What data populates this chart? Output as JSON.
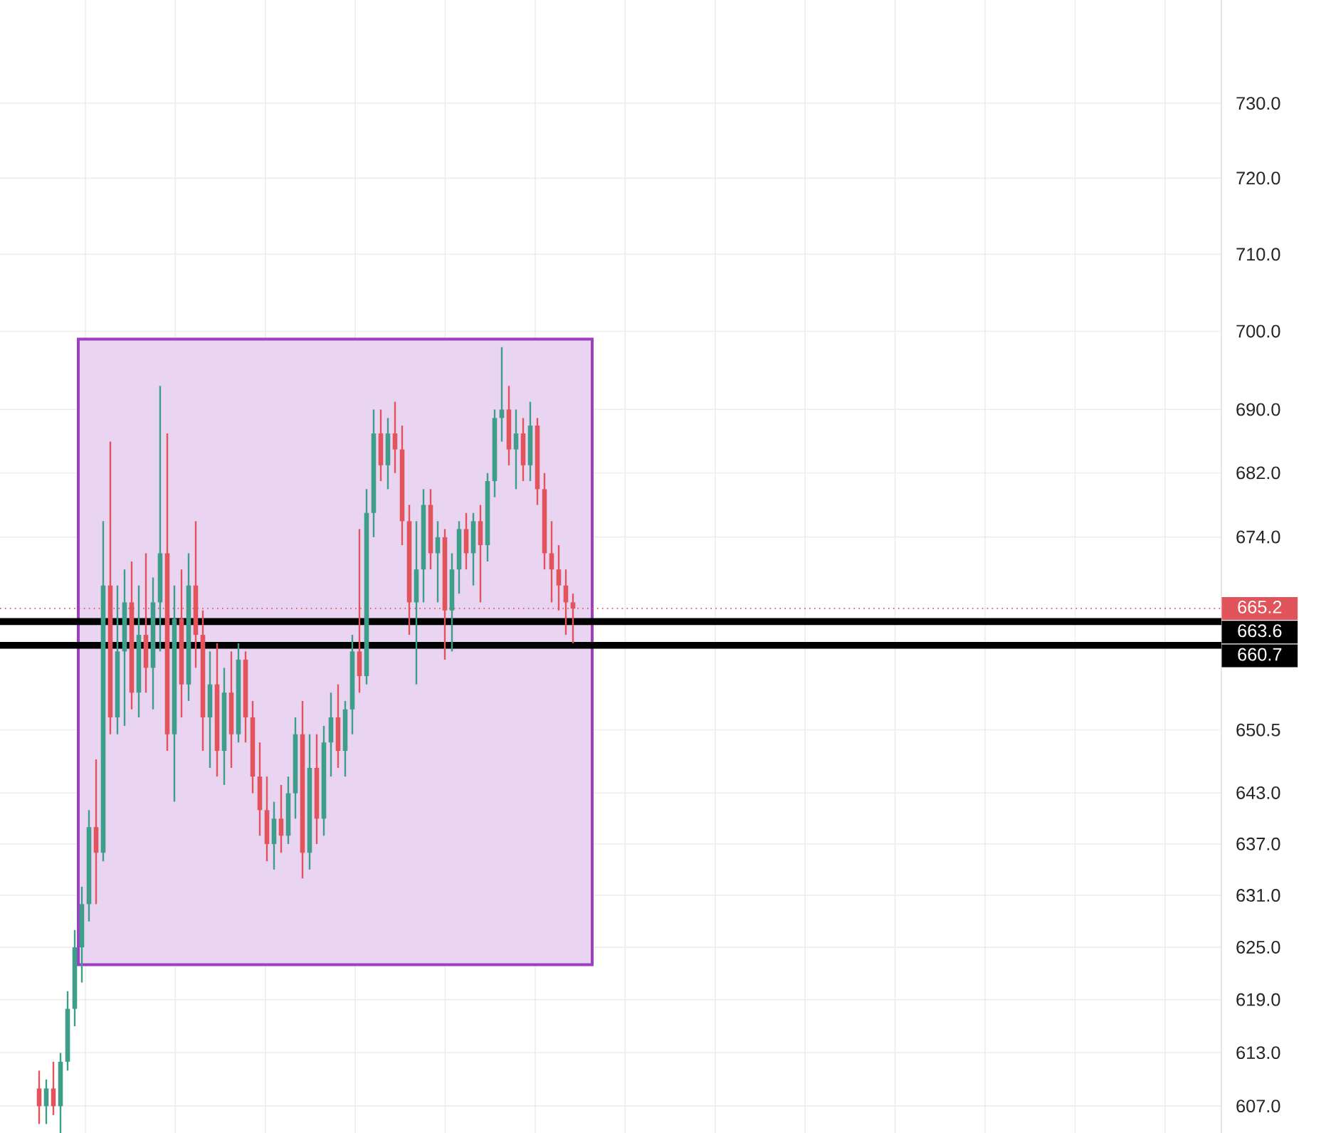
{
  "chart_data": {
    "type": "candlestick",
    "log": true,
    "grid": true,
    "categories": [
      null,
      null,
      null,
      null,
      null,
      null,
      null,
      null,
      null,
      null,
      null,
      null,
      null,
      null,
      null,
      null,
      null,
      null,
      null,
      null,
      null,
      null,
      null,
      null,
      null,
      null,
      null,
      null,
      null,
      null,
      null,
      null,
      null,
      null,
      null,
      null,
      null,
      null,
      null,
      null,
      null,
      null,
      null,
      null,
      null,
      null,
      null,
      null,
      null,
      null,
      null,
      null,
      null,
      null,
      null,
      null,
      null,
      null,
      null,
      null,
      null,
      null,
      null,
      null,
      null,
      null,
      null,
      null,
      null,
      null,
      null,
      null,
      null,
      null,
      null,
      null,
      null,
      null,
      null,
      null,
      null,
      null,
      null,
      null,
      null,
      null,
      null,
      null,
      null,
      null,
      null,
      null,
      null,
      null,
      null,
      null,
      null,
      null,
      null,
      null,
      null,
      null,
      null,
      null,
      null,
      null,
      null,
      null,
      null,
      null,
      null,
      null,
      null,
      null,
      null,
      null,
      null,
      null,
      null,
      null,
      null,
      null,
      null,
      null,
      null,
      null,
      null,
      null,
      null,
      null,
      null,
      null,
      null,
      null,
      null,
      null,
      null,
      null,
      null,
      null,
      null,
      null,
      null,
      null,
      null,
      null,
      null,
      null,
      null,
      null,
      null,
      null,
      null,
      null,
      null,
      null,
      null,
      null,
      null,
      null,
      null,
      null,
      null,
      null,
      null,
      null,
      null,
      null,
      null,
      null,
      null
    ],
    "ohlc": [
      null,
      null,
      null,
      null,
      null,
      [
        609,
        611,
        605,
        607
      ],
      [
        607,
        610,
        605,
        609
      ],
      [
        609,
        612,
        606,
        607
      ],
      [
        607,
        613,
        604,
        612
      ],
      [
        612,
        620,
        611,
        618
      ],
      [
        618,
        627,
        616,
        625
      ],
      [
        625,
        632,
        621,
        630
      ],
      [
        630,
        641,
        628,
        639
      ],
      [
        639,
        647,
        630,
        636
      ],
      [
        636,
        676,
        635,
        668
      ],
      [
        668,
        686,
        650,
        652
      ],
      [
        652,
        668,
        650,
        660
      ],
      [
        660,
        670,
        651,
        666
      ],
      [
        666,
        671,
        653,
        655
      ],
      [
        655,
        668,
        652,
        662
      ],
      [
        662,
        672,
        655,
        658
      ],
      [
        658,
        669,
        653,
        666
      ],
      [
        666,
        693,
        660,
        672
      ],
      [
        672,
        687,
        648,
        650
      ],
      [
        650,
        668,
        642,
        664
      ],
      [
        664,
        670,
        652,
        656
      ],
      [
        656,
        672,
        654,
        668
      ],
      [
        668,
        676,
        658,
        662
      ],
      [
        662,
        665,
        648,
        652
      ],
      [
        652,
        660,
        646,
        656
      ],
      [
        656,
        661,
        645,
        648
      ],
      [
        648,
        658,
        644,
        655
      ],
      [
        655,
        660,
        646,
        650
      ],
      [
        650,
        661,
        649,
        659
      ],
      [
        659,
        660,
        649,
        652
      ],
      [
        652,
        654,
        643,
        645
      ],
      [
        645,
        649,
        638,
        641
      ],
      [
        641,
        645,
        635,
        637
      ],
      [
        637,
        642,
        634,
        640
      ],
      [
        640,
        644,
        636,
        638
      ],
      [
        638,
        645,
        637,
        643
      ],
      [
        643,
        652,
        640,
        650
      ],
      [
        650,
        654,
        633,
        636
      ],
      [
        636,
        650,
        634,
        646
      ],
      [
        646,
        650,
        637,
        640
      ],
      [
        640,
        651,
        638,
        649
      ],
      [
        649,
        655,
        645,
        652
      ],
      [
        652,
        656,
        646,
        648
      ],
      [
        648,
        654,
        645,
        653
      ],
      [
        653,
        662,
        650,
        660
      ],
      [
        660,
        675,
        655,
        657
      ],
      [
        657,
        680,
        656,
        677
      ],
      [
        677,
        690,
        674,
        687
      ],
      [
        687,
        690,
        681,
        683
      ],
      [
        683,
        689,
        680,
        687
      ],
      [
        687,
        691,
        682,
        685
      ],
      [
        685,
        688,
        673,
        676
      ],
      [
        676,
        678,
        662,
        666
      ],
      [
        666,
        676,
        656,
        670
      ],
      [
        670,
        680,
        666,
        678
      ],
      [
        678,
        680,
        670,
        672
      ],
      [
        672,
        676,
        666,
        674
      ],
      [
        674,
        675,
        659,
        665
      ],
      [
        665,
        672,
        660,
        670
      ],
      [
        670,
        676,
        667,
        675
      ],
      [
        675,
        677,
        670,
        672
      ],
      [
        672,
        677,
        668,
        676
      ],
      [
        676,
        678,
        666,
        673
      ],
      [
        673,
        682,
        671,
        681
      ],
      [
        681,
        690,
        679,
        689
      ],
      [
        689,
        698,
        686,
        690
      ],
      [
        690,
        693,
        683,
        685
      ],
      [
        685,
        690,
        680,
        687
      ],
      [
        687,
        689,
        681,
        683
      ],
      [
        683,
        691,
        681,
        688
      ],
      [
        688,
        689,
        678,
        680
      ],
      [
        680,
        682,
        670,
        672
      ],
      [
        672,
        676,
        666,
        670
      ],
      [
        670,
        673,
        665,
        668
      ],
      [
        668,
        670,
        662,
        666
      ],
      [
        666,
        667,
        661,
        665.2
      ],
      null,
      null,
      null,
      null,
      null,
      null,
      null,
      null,
      null,
      null,
      null,
      null,
      null,
      null,
      null,
      null,
      null,
      null,
      null,
      null,
      null,
      null,
      null,
      null,
      null,
      null,
      null,
      null,
      null,
      null,
      null,
      null,
      null,
      null,
      null,
      null,
      null,
      null,
      null,
      null,
      null,
      null,
      null,
      null,
      null,
      null,
      null,
      null,
      null,
      null,
      null,
      null,
      null,
      null,
      null,
      null,
      null,
      null,
      null,
      null,
      null,
      null,
      null,
      null,
      null,
      null,
      null,
      null,
      null,
      null,
      null,
      null,
      null,
      null,
      null,
      null,
      null,
      null,
      null,
      null,
      null,
      null,
      null,
      null,
      null,
      null,
      null,
      null,
      null,
      null
    ],
    "colors": [
      null,
      null,
      null,
      null,
      null,
      "#e2545c",
      "#3e9e8a",
      "#e2545c",
      "#3e9e8a",
      "#3e9e8a",
      "#3e9e8a",
      "#3e9e8a",
      "#3e9e8a",
      "#e2545c",
      "#3e9e8a",
      "#e2545c",
      "#3e9e8a",
      "#3e9e8a",
      "#e2545c",
      "#3e9e8a",
      "#e2545c",
      "#3e9e8a",
      "#3e9e8a",
      "#e2545c",
      "#3e9e8a",
      "#e2545c",
      "#3e9e8a",
      "#e2545c",
      "#e2545c",
      "#3e9e8a",
      "#e2545c",
      "#3e9e8a",
      "#e2545c",
      "#3e9e8a",
      "#e2545c",
      "#e2545c",
      "#e2545c",
      "#e2545c",
      "#3e9e8a",
      "#e2545c",
      "#3e9e8a",
      "#3e9e8a",
      "#e2545c",
      "#3e9e8a",
      "#e2545c",
      "#3e9e8a",
      "#3e9e8a",
      "#e2545c",
      "#3e9e8a",
      "#3e9e8a",
      "#e2545c",
      "#3e9e8a",
      "#3e9e8a",
      "#e2545c",
      "#3e9e8a",
      "#e2545c",
      "#e2545c",
      "#e2545c",
      "#3e9e8a",
      "#3e9e8a",
      "#e2545c",
      "#3e9e8a",
      "#e2545c",
      "#3e9e8a",
      "#3e9e8a",
      "#e2545c",
      "#3e9e8a",
      "#e2545c",
      "#3e9e8a",
      "#3e9e8a",
      "#3e9e8a",
      "#e2545c",
      "#3e9e8a",
      "#e2545c",
      "#3e9e8a",
      "#e2545c",
      "#e2545c",
      "#e2545c",
      "#e2545c",
      "#e2545c",
      "#e2545c",
      null,
      null,
      null,
      null,
      null,
      null,
      null,
      null,
      null,
      null,
      null,
      null,
      null,
      null,
      null,
      null,
      null,
      null,
      null,
      null,
      null,
      null,
      null,
      null,
      null,
      null,
      null,
      null,
      null,
      null,
      null,
      null,
      null,
      null,
      null,
      null,
      null,
      null,
      null,
      null,
      null,
      null,
      null,
      null,
      null,
      null,
      null,
      null,
      null,
      null,
      null,
      null,
      null,
      null,
      null,
      null,
      null,
      null,
      null,
      null,
      null,
      null,
      null,
      null,
      null,
      null,
      null,
      null,
      null,
      null,
      null,
      null,
      null,
      null,
      null,
      null,
      null,
      null,
      null,
      null,
      null,
      null,
      null,
      null,
      null,
      null,
      null,
      null,
      null,
      null
    ],
    "ylim": [
      604,
      744
    ],
    "yticks": [
      {
        "value": 730,
        "label": "730.0"
      },
      {
        "value": 720,
        "label": "720.0"
      },
      {
        "value": 710,
        "label": "710.0"
      },
      {
        "value": 700,
        "label": "700.0"
      },
      {
        "value": 690,
        "label": "690.0"
      },
      {
        "value": 682,
        "label": "682.0"
      },
      {
        "value": 674,
        "label": "674.0"
      },
      {
        "value": 650.5,
        "label": "650.5"
      },
      {
        "value": 643,
        "label": "643.0"
      },
      {
        "value": 637,
        "label": "637.0"
      },
      {
        "value": 631,
        "label": "631.0"
      },
      {
        "value": 625,
        "label": "625.0"
      },
      {
        "value": 619,
        "label": "619.0"
      },
      {
        "value": 613,
        "label": "613.0"
      },
      {
        "value": 607,
        "label": "607.0"
      }
    ],
    "ref_lines": [
      {
        "axis": "y",
        "value": 665.2,
        "label": "665.2",
        "color": "#e2545c",
        "line_style": "dotted"
      },
      {
        "axis": "y",
        "value": 663.6,
        "label": "663.6",
        "color": "#000000",
        "line_style": "solid"
      },
      {
        "axis": "y",
        "value": 660.7,
        "label": "660.7",
        "color": "#000000",
        "line_style": "solid"
      }
    ],
    "bands": [
      {
        "axis": "y",
        "from": 623,
        "to": 699,
        "color": "#9c40c0"
      }
    ]
  }
}
